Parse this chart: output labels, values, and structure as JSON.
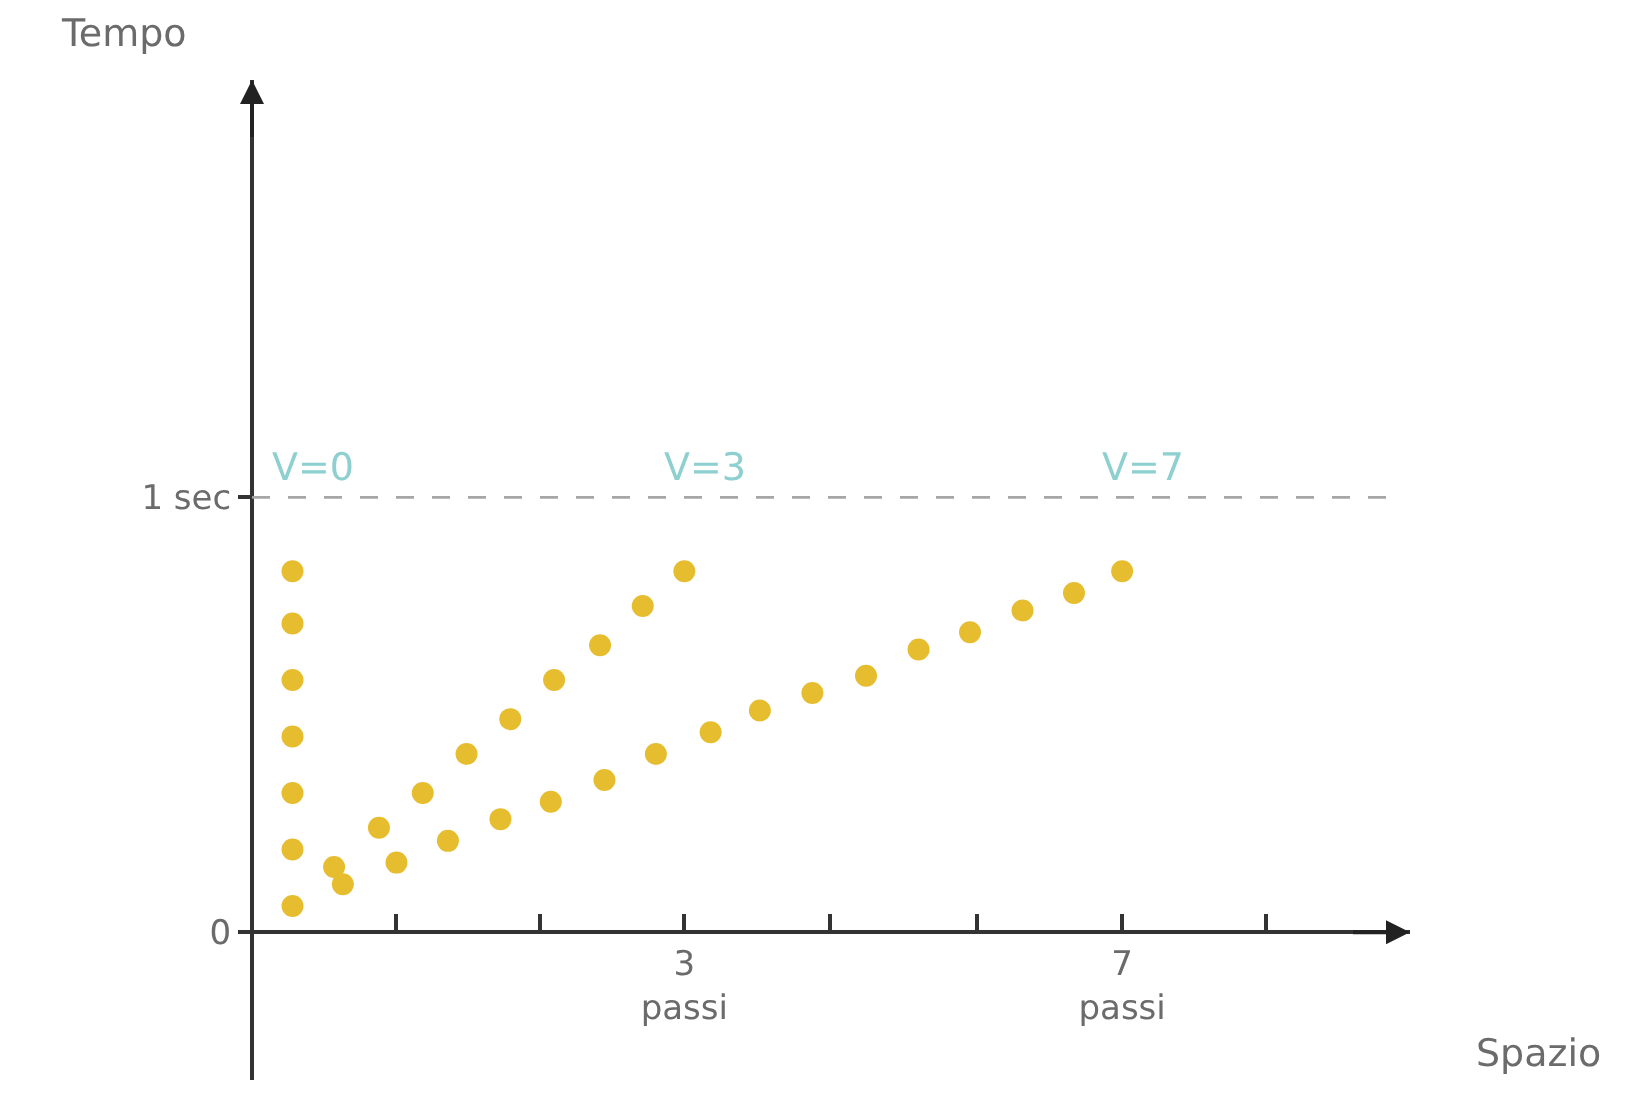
{
  "chart_data": {
    "type": "scatter",
    "xlabel": "Spazio",
    "ylabel": "Tempo",
    "xlim": [
      -0.95,
      9.63
    ],
    "ylim": [
      -0.34,
      1.96
    ],
    "xticks": [
      {
        "value": 0.37,
        "label": null
      },
      {
        "value": 1.68,
        "label": null
      },
      {
        "value": 3,
        "label": "3\npassi"
      },
      {
        "value": 4.33,
        "label": null
      },
      {
        "value": 5.67,
        "label": null
      },
      {
        "value": 7,
        "label": "7\npassi"
      },
      {
        "value": 8.31,
        "label": null
      }
    ],
    "yticks": [
      {
        "value": 0,
        "label": "0"
      },
      {
        "value": 1,
        "label": "1 sec"
      }
    ],
    "series": [
      {
        "color": "#e6bd2f",
        "x": [
          -0.58,
          -0.58,
          -0.58,
          -0.58,
          -0.58,
          -0.58,
          -0.58
        ],
        "values": [
          0.06,
          0.19,
          0.32,
          0.45,
          0.58,
          0.71,
          0.83
        ]
      },
      {
        "color": "#e6bd2f",
        "x": [
          -0.2,
          0.21,
          0.61,
          1.01,
          1.41,
          1.81,
          2.23,
          2.62,
          3.0
        ],
        "values": [
          0.15,
          0.24,
          0.32,
          0.41,
          0.49,
          0.58,
          0.66,
          0.75,
          0.83
        ]
      },
      {
        "color": "#e6bd2f",
        "x": [
          -0.12,
          0.37,
          0.84,
          1.32,
          1.78,
          2.27,
          2.74,
          3.24,
          3.69,
          4.17,
          4.66,
          5.14,
          5.61,
          6.09,
          6.56,
          7.0
        ],
        "values": [
          0.11,
          0.16,
          0.21,
          0.26,
          0.3,
          0.35,
          0.41,
          0.46,
          0.51,
          0.55,
          0.59,
          0.65,
          0.69,
          0.74,
          0.78,
          0.83
        ]
      }
    ],
    "ref_lines": [
      {
        "axis": "y",
        "value": 1,
        "label": null,
        "color": "#a6a6a6",
        "line_style": "dashed"
      }
    ],
    "annotations": [
      "V=0",
      "V=3",
      "V=7"
    ]
  }
}
